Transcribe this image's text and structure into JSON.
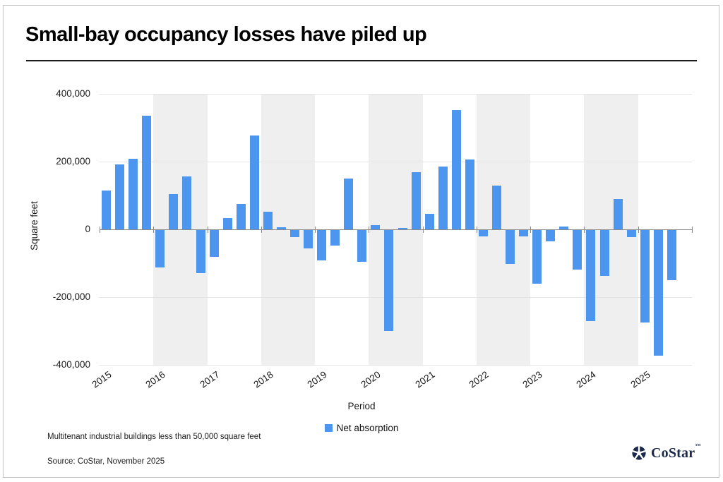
{
  "page": {
    "title": "Small-bay occupancy losses have piled up",
    "footnote": "Multitenant industrial buildings less than 50,000 square feet",
    "source": "Source: CoStar, November 2025",
    "logo": {
      "name": "CoStar",
      "trademark": "™",
      "color": "#1B2A4A"
    }
  },
  "chart_data": {
    "type": "bar",
    "title": "Small-bay occupancy losses have piled up",
    "xlabel": "Period",
    "ylabel": "Square feet",
    "legend": {
      "label": "Net absorption",
      "color": "#4D96F0"
    },
    "ylim": [
      -400000,
      400000
    ],
    "grid": true,
    "legend_position": "bottom-center",
    "yticks": [
      {
        "value": 400000,
        "label": "400,000"
      },
      {
        "value": 200000,
        "label": "200,000"
      },
      {
        "value": 0,
        "label": "0"
      },
      {
        "value": -200000,
        "label": "-200,000"
      },
      {
        "value": -400000,
        "label": "-400,000"
      }
    ],
    "year_labels": [
      "2015",
      "2016",
      "2017",
      "2018",
      "2019",
      "2020",
      "2021",
      "2022",
      "2023",
      "2024",
      "2025"
    ],
    "shaded_years": [
      "2016",
      "2018",
      "2020",
      "2022",
      "2024"
    ],
    "categories": [
      "2015 Q1",
      "2015 Q2",
      "2015 Q3",
      "2015 Q4",
      "2016 Q1",
      "2016 Q2",
      "2016 Q3",
      "2016 Q4",
      "2017 Q1",
      "2017 Q2",
      "2017 Q3",
      "2017 Q4",
      "2018 Q1",
      "2018 Q2",
      "2018 Q3",
      "2018 Q4",
      "2019 Q1",
      "2019 Q2",
      "2019 Q3",
      "2019 Q4",
      "2020 Q1",
      "2020 Q2",
      "2020 Q3",
      "2020 Q4",
      "2021 Q1",
      "2021 Q2",
      "2021 Q3",
      "2021 Q4",
      "2022 Q1",
      "2022 Q2",
      "2022 Q3",
      "2022 Q4",
      "2023 Q1",
      "2023 Q2",
      "2023 Q3",
      "2023 Q4",
      "2024 Q1",
      "2024 Q2",
      "2024 Q3",
      "2024 Q4",
      "2025 Q1",
      "2025 Q2",
      "2025 Q3"
    ],
    "series": [
      {
        "name": "Net absorption",
        "values": [
          115000,
          192000,
          208000,
          335000,
          -112000,
          105000,
          157000,
          -130000,
          -82000,
          34000,
          76000,
          277000,
          52000,
          7000,
          -22000,
          -56000,
          -92000,
          -48000,
          150000,
          -96000,
          12000,
          -300000,
          5000,
          168000,
          45000,
          186000,
          353000,
          207000,
          -20000,
          130000,
          -102000,
          -20000,
          -160000,
          -35000,
          8000,
          -118000,
          -270000,
          -138000,
          90000,
          -22000,
          -275000,
          -372000,
          -150000
        ]
      }
    ],
    "colors": {
      "bar": "#4D96F0",
      "band": "#EFEFEF",
      "gridline": "#E4E4E4",
      "axis": "#8a8a8a",
      "text": "#1a1a1a"
    }
  }
}
